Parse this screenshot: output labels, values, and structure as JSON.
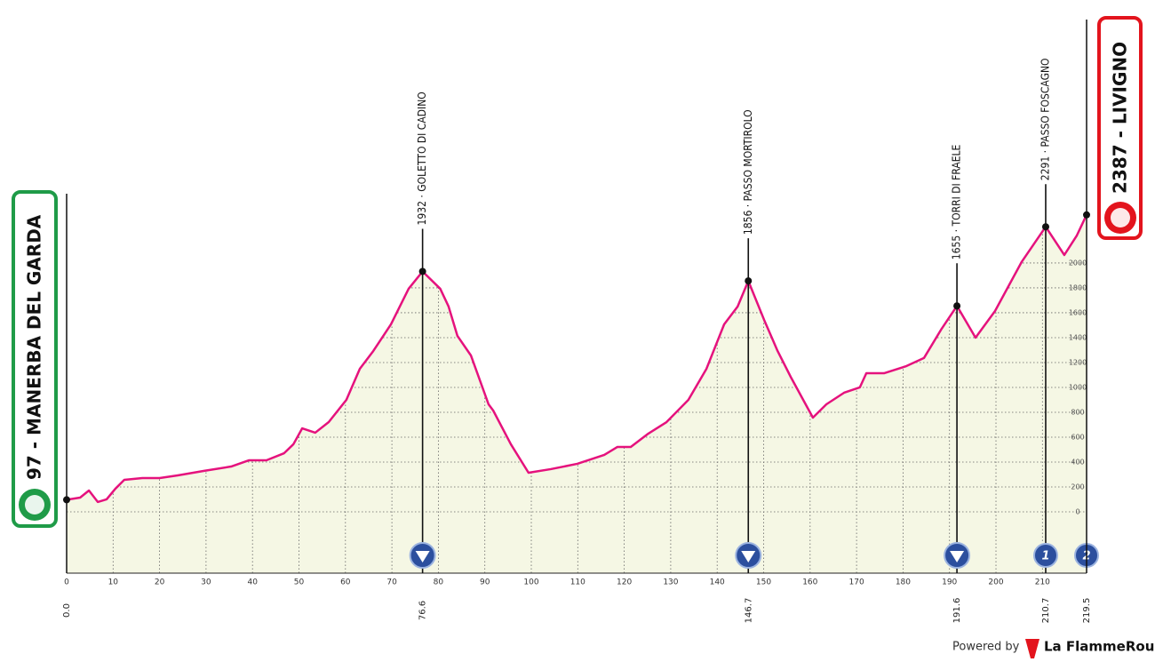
{
  "chart_data": {
    "type": "area",
    "color": "#e5127d",
    "fill": "#f5f7e4",
    "start": {
      "km": 0,
      "elevation": 97,
      "label": "97 - MANERBA DEL GARDA",
      "color": "#1f9b48"
    },
    "finish": {
      "km": 219.5,
      "elevation": 2387,
      "label": "2387 - LIVIGNO",
      "color": "#e3141d"
    },
    "x": [
      0,
      2.9,
      4.8,
      6.7,
      8.6,
      10.5,
      12.4,
      16.3,
      20,
      23.9,
      29.6,
      35.4,
      39.2,
      43,
      46.8,
      48.8,
      50.7,
      53.5,
      56.4,
      60.2,
      63.1,
      66,
      69.8,
      73.6,
      76.6,
      80.4,
      82.2,
      84.1,
      87,
      90.8,
      91.8,
      95.6,
      99.4,
      104.2,
      109.9,
      115.7,
      118.5,
      121.4,
      125.2,
      129.1,
      133.8,
      137.7,
      141.5,
      144.4,
      146.7,
      150.1,
      153,
      155.9,
      160.6,
      163.5,
      167.3,
      170.7,
      172.1,
      175.9,
      180.7,
      184.5,
      188.3,
      191.6,
      195.6,
      199.8,
      205.5,
      210.7,
      214.7,
      217.4,
      219.5
    ],
    "values": [
      97,
      114,
      171,
      79,
      100,
      186,
      257,
      271,
      271,
      293,
      329,
      364,
      414,
      414,
      471,
      543,
      671,
      636,
      721,
      900,
      1150,
      1293,
      1507,
      1793,
      1932,
      1793,
      1650,
      1414,
      1257,
      864,
      814,
      543,
      314,
      343,
      386,
      457,
      521,
      521,
      629,
      721,
      900,
      1150,
      1507,
      1650,
      1856,
      1543,
      1293,
      1079,
      757,
      864,
      957,
      1000,
      1114,
      1114,
      1171,
      1236,
      1471,
      1655,
      1400,
      1614,
      2007,
      2291,
      2064,
      2221,
      2387
    ],
    "xlim": [
      0,
      219.5
    ],
    "ylim": [
      -493,
      3971
    ],
    "xticks": [
      0,
      10,
      20,
      30,
      40,
      50,
      60,
      70,
      80,
      90,
      100,
      110,
      120,
      130,
      140,
      150,
      160,
      170,
      180,
      190,
      200,
      210
    ],
    "yticks": [
      0,
      200,
      400,
      600,
      800,
      1000,
      1200,
      1400,
      1600,
      1800,
      2000
    ],
    "km_labels": [
      {
        "value": 0,
        "label": "0.0"
      },
      {
        "value": 76.6,
        "label": "76.6"
      },
      {
        "value": 146.7,
        "label": "146.7"
      },
      {
        "value": 191.6,
        "label": "191.6"
      },
      {
        "value": 210.7,
        "label": "210.7"
      },
      {
        "value": 219.5,
        "label": "219.5"
      }
    ],
    "summits": [
      {
        "km": 76.6,
        "elevation": 1932,
        "label": "1932 · GOLETTO DI CADINO"
      },
      {
        "km": 146.7,
        "elevation": 1856,
        "label": "1856 · PASSO MORTIROLO"
      },
      {
        "km": 191.6,
        "elevation": 1655,
        "label": "1655 · TORRI  DI FRAELE"
      },
      {
        "km": 210.7,
        "elevation": 2291,
        "label": "2291 · PASSO FOSCAGNO"
      }
    ],
    "descent_icons": [
      76.6,
      146.7,
      191.6
    ],
    "sprints": [
      {
        "km": 210.7,
        "label": "1"
      },
      {
        "km": 219.5,
        "label": "2"
      }
    ]
  },
  "footer": {
    "powered": "Powered by",
    "brand": "La FlammeRouge"
  }
}
